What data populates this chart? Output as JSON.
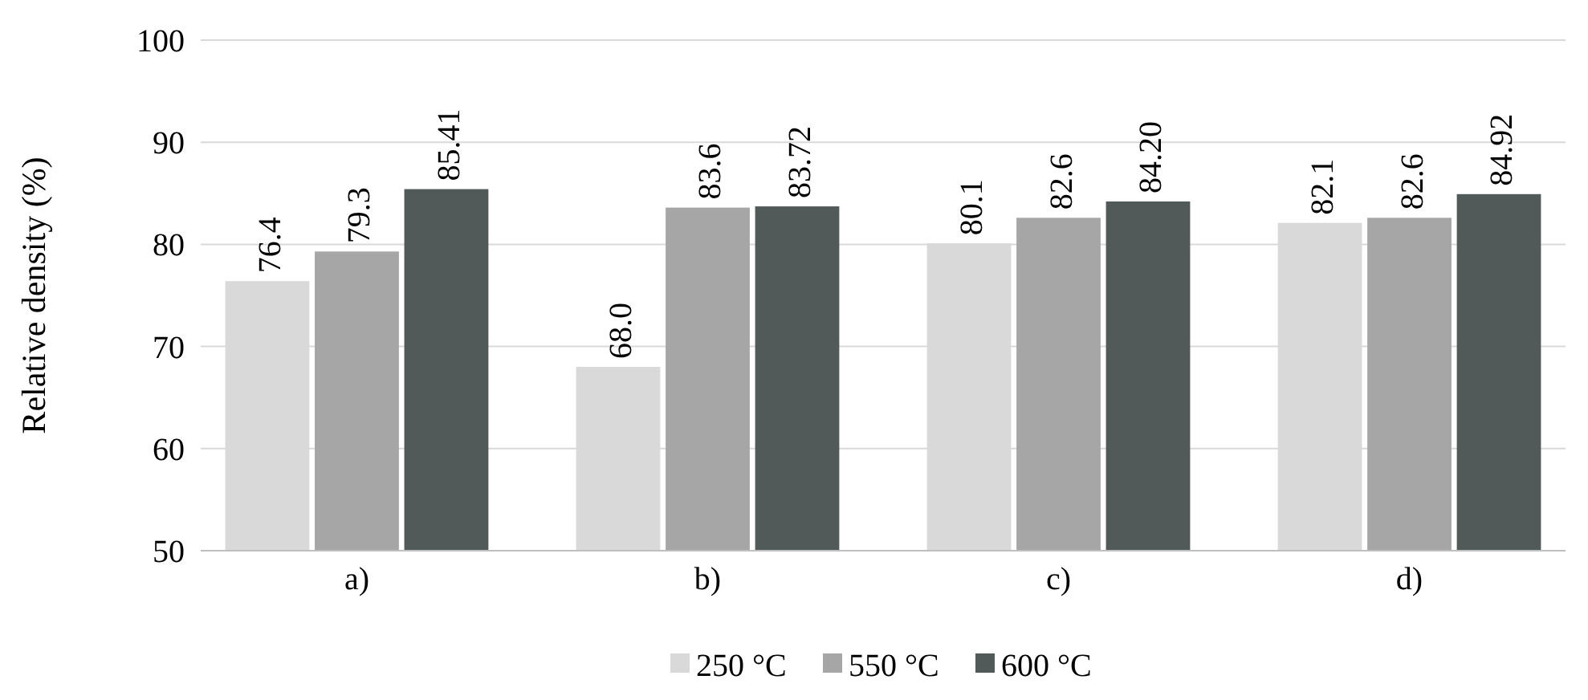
{
  "chart_data": {
    "type": "bar",
    "ylabel": "Relative density (%)",
    "categories": [
      "a)",
      "b)",
      "c)",
      "d)"
    ],
    "series": [
      {
        "name": "250 °C",
        "color": "#d9d9d9",
        "values": [
          76.4,
          68.0,
          80.1,
          82.1
        ],
        "value_labels": [
          "76.4",
          "68.0",
          "80.1",
          "82.1"
        ]
      },
      {
        "name": "550 °C",
        "color": "#a6a6a6",
        "values": [
          79.3,
          83.6,
          82.6,
          82.6
        ],
        "value_labels": [
          "79.3",
          "83.6",
          "82.6",
          "82.6"
        ]
      },
      {
        "name": "600 °C",
        "color": "#525a59",
        "values": [
          85.41,
          83.72,
          84.2,
          84.92
        ],
        "value_labels": [
          "85.41",
          "83.72",
          "84.20",
          "84.92"
        ]
      }
    ],
    "ylim": [
      50,
      100
    ],
    "yticks": [
      50,
      60,
      70,
      80,
      90,
      100
    ],
    "grid": "y",
    "legend": "bottom"
  }
}
